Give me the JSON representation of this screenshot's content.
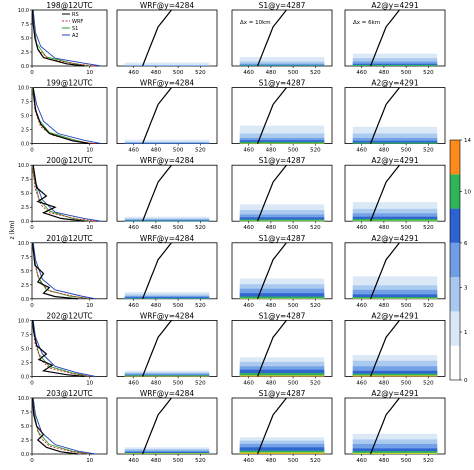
{
  "figure": {
    "profile_ylabel": "z (km)",
    "colorbar": {
      "ticks": [
        "14",
        "10",
        "6",
        "3",
        "1",
        "0"
      ],
      "colors": [
        "#d9e8f7",
        "#a8c8ee",
        "#6f9ee6",
        "#2d63d0",
        "#2fb45a",
        "#c8dc29",
        "#ff8a1c"
      ]
    },
    "model_colors": {
      "RS": "#000000",
      "WRF": "#d62728",
      "S1": "#2ca02c",
      "A2": "#1f3fbf"
    }
  },
  "chart_data": [
    {
      "type": "line",
      "panel": "profiles",
      "rows": [
        {
          "title": "198@12UTC"
        },
        {
          "title": "199@12UTC"
        },
        {
          "title": "200@12UTC"
        },
        {
          "title": "201@12UTC"
        },
        {
          "title": "202@12UTC"
        },
        {
          "title": "203@12UTC"
        }
      ],
      "legend": [
        "RS",
        "WRF",
        "S1",
        "A2"
      ],
      "ylabel": "z (km)",
      "ylim": [
        0,
        10
      ],
      "yticks": [
        "0.0",
        "2.5",
        "5.0",
        "7.5",
        "10.0"
      ],
      "xlim": [
        0,
        13
      ],
      "xticks": [
        "0",
        "10"
      ],
      "series_by_row": [
        {
          "RS": [
            [
              9,
              0
            ],
            [
              6,
              0.4
            ],
            [
              2,
              1.5
            ],
            [
              1,
              3
            ],
            [
              0.5,
              5
            ],
            [
              0.2,
              7.5
            ],
            [
              0.1,
              10
            ]
          ],
          "WRF": [
            [
              11,
              0
            ],
            [
              8,
              0.3
            ],
            [
              3,
              1.2
            ],
            [
              1,
              3
            ],
            [
              0.4,
              6
            ],
            [
              0.1,
              10
            ]
          ],
          "S1": [
            [
              10,
              0
            ],
            [
              7,
              0.5
            ],
            [
              2.5,
              1.6
            ],
            [
              0.8,
              4
            ],
            [
              0.2,
              8
            ],
            [
              0,
              10
            ]
          ],
          "A2": [
            [
              12,
              0
            ],
            [
              9,
              0.5
            ],
            [
              4,
              1.4
            ],
            [
              1.5,
              3.5
            ],
            [
              0.6,
              6
            ],
            [
              0.2,
              10
            ]
          ]
        },
        {
          "RS": [
            [
              10,
              0
            ],
            [
              7,
              0.5
            ],
            [
              3,
              1.8
            ],
            [
              1.5,
              3.5
            ],
            [
              0.6,
              6
            ],
            [
              0.2,
              10
            ]
          ],
          "WRF": [
            [
              11,
              0
            ],
            [
              8,
              0.4
            ],
            [
              3.5,
              1.5
            ],
            [
              1.5,
              3
            ],
            [
              0.5,
              6
            ],
            [
              0.1,
              10
            ]
          ],
          "S1": [
            [
              10,
              0
            ],
            [
              7.5,
              0.6
            ],
            [
              3,
              2
            ],
            [
              1,
              4.5
            ],
            [
              0.3,
              8
            ],
            [
              0,
              10
            ]
          ],
          "A2": [
            [
              12,
              0
            ],
            [
              9,
              0.6
            ],
            [
              4.5,
              1.8
            ],
            [
              2,
              4
            ],
            [
              0.8,
              7
            ],
            [
              0.2,
              10
            ]
          ]
        },
        {
          "RS": [
            [
              9,
              0
            ],
            [
              5,
              0.5
            ],
            [
              2,
              1.5
            ],
            [
              4,
              2.5
            ],
            [
              1,
              3.5
            ],
            [
              2.5,
              4.5
            ],
            [
              0.8,
              6
            ],
            [
              0.2,
              10
            ]
          ],
          "WRF": [
            [
              11,
              0
            ],
            [
              8,
              0.4
            ],
            [
              3,
              1.5
            ],
            [
              1.5,
              3
            ],
            [
              0.5,
              6
            ],
            [
              0.1,
              10
            ]
          ],
          "S1": [
            [
              10,
              0
            ],
            [
              7,
              0.5
            ],
            [
              3,
              1.8
            ],
            [
              1.2,
              4
            ],
            [
              0.3,
              8
            ],
            [
              0,
              10
            ]
          ],
          "A2": [
            [
              12,
              0
            ],
            [
              9,
              0.5
            ],
            [
              4,
              1.6
            ],
            [
              1.8,
              3.8
            ],
            [
              0.6,
              7
            ],
            [
              0.2,
              10
            ]
          ]
        },
        {
          "RS": [
            [
              8,
              0
            ],
            [
              4,
              0.4
            ],
            [
              2,
              1
            ],
            [
              3,
              2
            ],
            [
              1,
              3
            ],
            [
              2,
              4.5
            ],
            [
              0.5,
              6
            ],
            [
              0.1,
              10
            ]
          ],
          "WRF": [
            [
              10,
              0
            ],
            [
              7,
              0.5
            ],
            [
              3,
              1.4
            ],
            [
              1.4,
              3
            ],
            [
              0.5,
              6
            ],
            [
              0.1,
              10
            ]
          ],
          "S1": [
            [
              10,
              0
            ],
            [
              6.5,
              0.5
            ],
            [
              2.5,
              1.6
            ],
            [
              1,
              4
            ],
            [
              0.3,
              8
            ],
            [
              0,
              10
            ]
          ],
          "A2": [
            [
              11,
              0
            ],
            [
              8.5,
              0.5
            ],
            [
              4,
              1.6
            ],
            [
              1.8,
              3.5
            ],
            [
              0.6,
              7
            ],
            [
              0.2,
              10
            ]
          ]
        },
        {
          "RS": [
            [
              9,
              0
            ],
            [
              6,
              0.3
            ],
            [
              2,
              1
            ],
            [
              3.5,
              2
            ],
            [
              1.2,
              3
            ],
            [
              2.5,
              4
            ],
            [
              0.8,
              5.5
            ],
            [
              0.3,
              8
            ],
            [
              0.1,
              10
            ]
          ],
          "WRF": [
            [
              10,
              0
            ],
            [
              7,
              0.5
            ],
            [
              3,
              1.5
            ],
            [
              1.5,
              3
            ],
            [
              0.5,
              6
            ],
            [
              0.1,
              10
            ]
          ],
          "S1": [
            [
              10,
              0
            ],
            [
              7,
              0.6
            ],
            [
              3,
              1.8
            ],
            [
              1.2,
              4
            ],
            [
              0.3,
              8
            ],
            [
              0,
              10
            ]
          ],
          "A2": [
            [
              11,
              0
            ],
            [
              8,
              0.6
            ],
            [
              4,
              1.8
            ],
            [
              1.8,
              4
            ],
            [
              0.6,
              7
            ],
            [
              0.2,
              10
            ]
          ]
        },
        {
          "RS": [
            [
              8,
              0
            ],
            [
              5,
              0.4
            ],
            [
              2.5,
              1.2
            ],
            [
              1,
              2.5
            ],
            [
              2,
              3.5
            ],
            [
              0.8,
              5
            ],
            [
              0.3,
              7
            ],
            [
              0.1,
              10
            ]
          ],
          "WRF": [
            [
              10,
              0
            ],
            [
              7,
              0.4
            ],
            [
              3,
              1.4
            ],
            [
              1.4,
              3
            ],
            [
              0.5,
              6
            ],
            [
              0.1,
              10
            ]
          ],
          "S1": [
            [
              10,
              0
            ],
            [
              7,
              0.5
            ],
            [
              3,
              1.7
            ],
            [
              1,
              4
            ],
            [
              0.3,
              8
            ],
            [
              0,
              10
            ]
          ],
          "A2": [
            [
              11,
              0
            ],
            [
              8,
              0.5
            ],
            [
              4,
              1.7
            ],
            [
              1.7,
              3.8
            ],
            [
              0.6,
              7
            ],
            [
              0.2,
              10
            ]
          ]
        }
      ]
    },
    {
      "type": "heatmap",
      "panel": "cross-sections",
      "columns": [
        {
          "title": "WRF@y=4284",
          "annotation": ""
        },
        {
          "title": "S1@y=4287",
          "annotation": "Δx = 10km"
        },
        {
          "title": "A2@y=4291",
          "annotation": "Δx = 6km"
        }
      ],
      "xlim": [
        445,
        535
      ],
      "xticks": [
        460,
        480,
        500,
        520
      ],
      "ylim": [
        0,
        10
      ],
      "levels": [
        0,
        1,
        3,
        6,
        10,
        14
      ],
      "terrain_x": [
        468,
        470,
        472,
        474,
        476,
        478,
        480,
        482,
        486,
        490,
        494
      ],
      "terrain_z": [
        0,
        1,
        2,
        3,
        4,
        5,
        6,
        7,
        8,
        9,
        10
      ],
      "layer_tops_km": [
        [
          [
            0.6,
            0.2,
            0.1,
            0,
            0,
            0,
            0
          ],
          [
            1.6,
            0.8,
            0.4,
            0.2,
            0.1,
            0,
            0
          ],
          [
            2.2,
            1.4,
            0.8,
            0.4,
            0.2,
            0,
            0
          ]
        ],
        [
          [
            0.7,
            0.3,
            0.2,
            0.1,
            0,
            0,
            0
          ],
          [
            3.2,
            1.8,
            1.0,
            0.6,
            0.3,
            0.1,
            0
          ],
          [
            3.0,
            1.8,
            1.0,
            0.5,
            0.2,
            0,
            0
          ]
        ],
        [
          [
            0.8,
            0.5,
            0.3,
            0.2,
            0.1,
            0,
            0
          ],
          [
            3.0,
            2.0,
            1.2,
            0.7,
            0.3,
            0.1,
            0
          ],
          [
            3.4,
            2.2,
            1.4,
            0.8,
            0.4,
            0.1,
            0
          ]
        ],
        [
          [
            1.2,
            0.8,
            0.5,
            0.3,
            0.1,
            0,
            0
          ],
          [
            3.6,
            2.6,
            1.8,
            1.0,
            0.4,
            0.1,
            0
          ],
          [
            4.0,
            2.4,
            1.6,
            0.8,
            0.3,
            0.1,
            0
          ]
        ],
        [
          [
            1.0,
            0.7,
            0.5,
            0.3,
            0.2,
            0.1,
            0
          ],
          [
            3.4,
            2.6,
            1.8,
            1.2,
            0.6,
            0.2,
            0.1
          ],
          [
            3.8,
            2.8,
            1.8,
            1.0,
            0.5,
            0.2,
            0.1
          ]
        ],
        [
          [
            1.2,
            0.9,
            0.6,
            0.4,
            0.2,
            0.1,
            0
          ],
          [
            3.0,
            2.4,
            1.8,
            1.2,
            0.6,
            0.3,
            0.1
          ],
          [
            3.6,
            2.6,
            1.8,
            1.0,
            0.5,
            0.2,
            0
          ]
        ]
      ]
    }
  ]
}
